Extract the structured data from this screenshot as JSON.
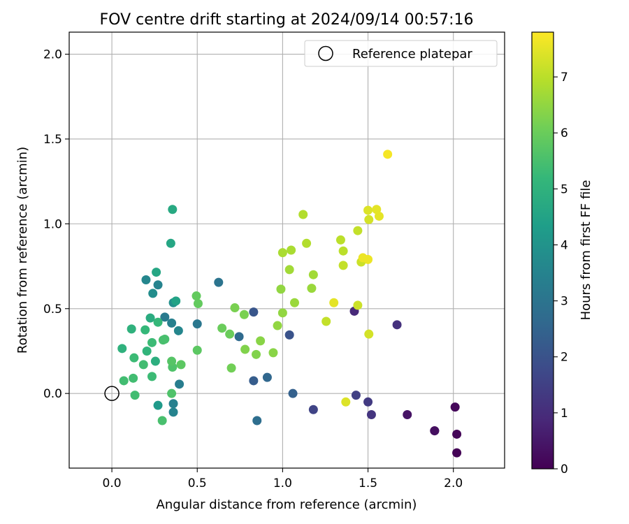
{
  "chart_data": {
    "type": "scatter",
    "title": "FOV centre drift starting at 2024/09/14 00:57:16",
    "xlabel": "Angular distance from reference (arcmin)",
    "ylabel": "Rotation from reference (arcmin)",
    "xlim": [
      -0.25,
      2.3
    ],
    "ylim": [
      -0.44,
      2.13
    ],
    "xticks": [
      0.0,
      0.5,
      1.0,
      1.5,
      2.0
    ],
    "xtick_labels": [
      "0.0",
      "0.5",
      "1.0",
      "1.5",
      "2.0"
    ],
    "yticks": [
      0.0,
      0.5,
      1.0,
      1.5,
      2.0
    ],
    "ytick_labels": [
      "0.0",
      "0.5",
      "1.0",
      "1.5",
      "2.0"
    ],
    "grid": true,
    "legend": {
      "position": "top-right",
      "entries": [
        "Reference platepar"
      ]
    },
    "reference_point": {
      "x": 0.0,
      "y": 0.0,
      "label": "Reference platepar"
    },
    "colorbar": {
      "label": "Hours from first FF file",
      "min": 0,
      "max": 7.8,
      "ticks": [
        0,
        1,
        2,
        3,
        4,
        5,
        6,
        7
      ],
      "tick_labels": [
        "0",
        "1",
        "2",
        "3",
        "4",
        "5",
        "6",
        "7"
      ],
      "colormap": "viridis",
      "colors": [
        "#440154",
        "#482878",
        "#3e4989",
        "#31688e",
        "#26828e",
        "#1f9e89",
        "#35b779",
        "#6ece58",
        "#b5de2b",
        "#fde725"
      ]
    },
    "points": [
      {
        "x": 2.02,
        "y": -0.35,
        "t": 0.05
      },
      {
        "x": 2.02,
        "y": -0.24,
        "t": 0.1
      },
      {
        "x": 2.01,
        "y": -0.08,
        "t": 0.15
      },
      {
        "x": 1.89,
        "y": -0.22,
        "t": 0.25
      },
      {
        "x": 1.89,
        "y": -0.22,
        "t": 0.3
      },
      {
        "x": 1.73,
        "y": -0.125,
        "t": 0.4
      },
      {
        "x": 1.67,
        "y": 0.405,
        "t": 1.1
      },
      {
        "x": 1.42,
        "y": 0.485,
        "t": 0.9
      },
      {
        "x": 1.52,
        "y": -0.125,
        "t": 1.2
      },
      {
        "x": 1.5,
        "y": -0.05,
        "t": 1.35
      },
      {
        "x": 1.43,
        "y": -0.01,
        "t": 1.5
      },
      {
        "x": 1.18,
        "y": -0.095,
        "t": 1.6
      },
      {
        "x": 1.06,
        "y": 0.0,
        "t": 2.4
      },
      {
        "x": 1.04,
        "y": 0.345,
        "t": 2.0
      },
      {
        "x": 0.91,
        "y": 0.095,
        "t": 2.6
      },
      {
        "x": 0.85,
        "y": -0.16,
        "t": 2.8
      },
      {
        "x": 0.83,
        "y": 0.48,
        "t": 2.1
      },
      {
        "x": 0.83,
        "y": 0.075,
        "t": 2.3
      },
      {
        "x": 0.745,
        "y": 0.335,
        "t": 2.7
      },
      {
        "x": 0.625,
        "y": 0.655,
        "t": 3.0
      },
      {
        "x": 0.5,
        "y": 0.41,
        "t": 3.1
      },
      {
        "x": 0.395,
        "y": 0.055,
        "t": 3.3
      },
      {
        "x": 0.36,
        "y": -0.06,
        "t": 3.4
      },
      {
        "x": 0.36,
        "y": -0.11,
        "t": 3.5
      },
      {
        "x": 0.39,
        "y": 0.37,
        "t": 3.6
      },
      {
        "x": 0.31,
        "y": 0.45,
        "t": 3.2
      },
      {
        "x": 0.35,
        "y": 0.415,
        "t": 3.4
      },
      {
        "x": 0.27,
        "y": 0.64,
        "t": 3.5
      },
      {
        "x": 0.2,
        "y": 0.67,
        "t": 3.6
      },
      {
        "x": 0.24,
        "y": 0.59,
        "t": 3.8
      },
      {
        "x": 0.36,
        "y": 0.535,
        "t": 3.9
      },
      {
        "x": 0.27,
        "y": -0.07,
        "t": 4.2
      },
      {
        "x": 0.375,
        "y": 0.545,
        "t": 4.5
      },
      {
        "x": 0.26,
        "y": 0.715,
        "t": 4.6
      },
      {
        "x": 0.345,
        "y": 0.885,
        "t": 4.6
      },
      {
        "x": 0.355,
        "y": 1.085,
        "t": 4.7
      },
      {
        "x": 0.225,
        "y": 0.445,
        "t": 4.8
      },
      {
        "x": 0.255,
        "y": 0.19,
        "t": 4.9
      },
      {
        "x": 0.115,
        "y": 0.38,
        "t": 5.0
      },
      {
        "x": 0.06,
        "y": 0.265,
        "t": 5.0
      },
      {
        "x": 0.205,
        "y": 0.25,
        "t": 5.1
      },
      {
        "x": 0.27,
        "y": 0.42,
        "t": 5.2
      },
      {
        "x": 0.195,
        "y": 0.375,
        "t": 5.2
      },
      {
        "x": 0.235,
        "y": 0.3,
        "t": 5.3
      },
      {
        "x": 0.13,
        "y": 0.21,
        "t": 5.3
      },
      {
        "x": 0.235,
        "y": 0.1,
        "t": 5.3
      },
      {
        "x": 0.185,
        "y": 0.17,
        "t": 5.4
      },
      {
        "x": 0.07,
        "y": 0.075,
        "t": 5.4
      },
      {
        "x": 0.125,
        "y": 0.09,
        "t": 5.4
      },
      {
        "x": 0.135,
        "y": -0.01,
        "t": 5.4
      },
      {
        "x": 0.31,
        "y": 0.32,
        "t": 5.5
      },
      {
        "x": 0.3,
        "y": 0.315,
        "t": 5.5
      },
      {
        "x": 0.295,
        "y": -0.16,
        "t": 5.5
      },
      {
        "x": 0.355,
        "y": 0.155,
        "t": 5.6
      },
      {
        "x": 0.35,
        "y": 0.0,
        "t": 5.6
      },
      {
        "x": 0.35,
        "y": 0.19,
        "t": 5.7
      },
      {
        "x": 0.405,
        "y": 0.17,
        "t": 5.8
      },
      {
        "x": 0.5,
        "y": 0.255,
        "t": 5.8
      },
      {
        "x": 0.505,
        "y": 0.53,
        "t": 5.9
      },
      {
        "x": 0.495,
        "y": 0.575,
        "t": 5.9
      },
      {
        "x": 0.645,
        "y": 0.385,
        "t": 6.0
      },
      {
        "x": 0.69,
        "y": 0.35,
        "t": 6.0
      },
      {
        "x": 0.7,
        "y": 0.15,
        "t": 6.1
      },
      {
        "x": 0.72,
        "y": 0.505,
        "t": 6.2
      },
      {
        "x": 0.775,
        "y": 0.465,
        "t": 6.2
      },
      {
        "x": 0.78,
        "y": 0.26,
        "t": 6.3
      },
      {
        "x": 0.845,
        "y": 0.23,
        "t": 6.3
      },
      {
        "x": 0.87,
        "y": 0.31,
        "t": 6.4
      },
      {
        "x": 0.945,
        "y": 0.24,
        "t": 6.4
      },
      {
        "x": 0.97,
        "y": 0.4,
        "t": 6.5
      },
      {
        "x": 1.0,
        "y": 0.475,
        "t": 6.5
      },
      {
        "x": 0.99,
        "y": 0.615,
        "t": 6.5
      },
      {
        "x": 1.07,
        "y": 0.535,
        "t": 6.6
      },
      {
        "x": 1.17,
        "y": 0.62,
        "t": 6.6
      },
      {
        "x": 1.18,
        "y": 0.7,
        "t": 6.7
      },
      {
        "x": 1.04,
        "y": 0.73,
        "t": 6.7
      },
      {
        "x": 1.0,
        "y": 0.83,
        "t": 6.8
      },
      {
        "x": 1.05,
        "y": 0.845,
        "t": 6.8
      },
      {
        "x": 1.14,
        "y": 0.885,
        "t": 6.9
      },
      {
        "x": 1.12,
        "y": 1.055,
        "t": 6.9
      },
      {
        "x": 1.255,
        "y": 0.425,
        "t": 7.1
      },
      {
        "x": 1.34,
        "y": 0.905,
        "t": 7.0
      },
      {
        "x": 1.355,
        "y": 0.84,
        "t": 7.0
      },
      {
        "x": 1.355,
        "y": 0.755,
        "t": 7.1
      },
      {
        "x": 1.44,
        "y": 0.96,
        "t": 7.1
      },
      {
        "x": 1.44,
        "y": 0.52,
        "t": 7.2
      },
      {
        "x": 1.46,
        "y": 0.775,
        "t": 7.2
      },
      {
        "x": 1.505,
        "y": 1.025,
        "t": 7.3
      },
      {
        "x": 1.505,
        "y": 0.35,
        "t": 7.3
      },
      {
        "x": 1.5,
        "y": 1.08,
        "t": 7.4
      },
      {
        "x": 1.55,
        "y": 1.085,
        "t": 7.5
      },
      {
        "x": 1.565,
        "y": 1.045,
        "t": 7.5
      },
      {
        "x": 1.37,
        "y": -0.05,
        "t": 7.4
      },
      {
        "x": 1.3,
        "y": 0.535,
        "t": 7.5
      },
      {
        "x": 1.5,
        "y": 0.79,
        "t": 7.6
      },
      {
        "x": 1.47,
        "y": 0.8,
        "t": 7.6
      },
      {
        "x": 1.615,
        "y": 1.41,
        "t": 7.7
      }
    ]
  }
}
